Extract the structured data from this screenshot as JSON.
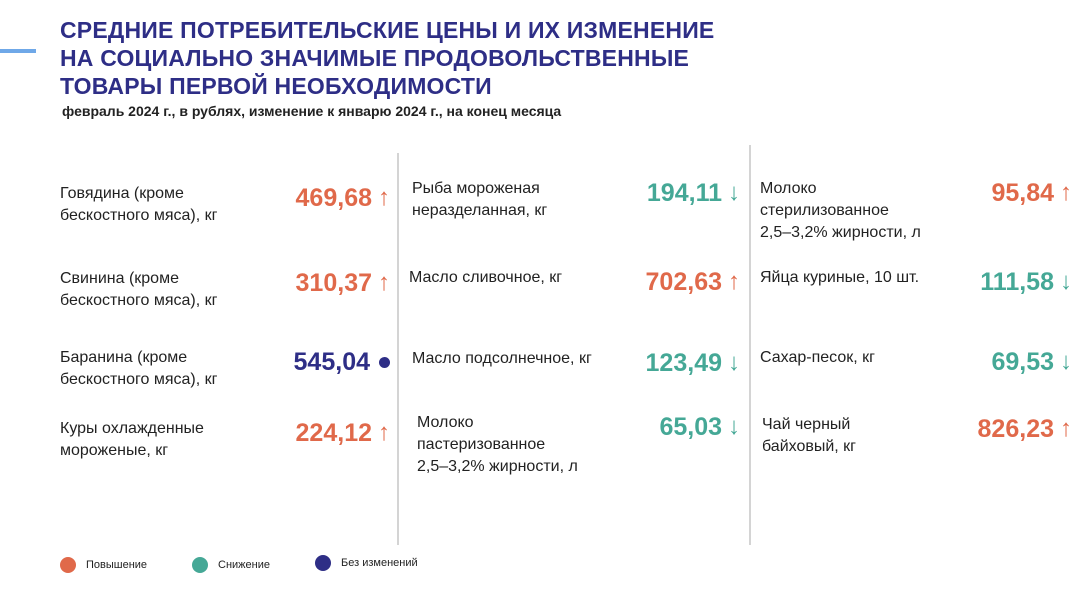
{
  "title": {
    "lines": [
      "СРЕДНИЕ ПОТРЕБИТЕЛЬСКИЕ ЦЕНЫ И ИХ ИЗМЕНЕНИЕ",
      "НА СОЦИАЛЬНО ЗНАЧИМЫЕ ПРОДОВОЛЬСТВЕННЫЕ",
      "ТОВАРЫ ПЕРВОЙ НЕОБХОДИМОСТИ"
    ]
  },
  "subtitle": "февраль 2024 г., в рублях, изменение к январю 2024 г., на конец месяца",
  "colors": {
    "title": "#2e2e86",
    "increase": "#e0694a",
    "decrease": "#45a896",
    "unchanged": "#2e2e86",
    "accent_bar": "#6fa8e8"
  },
  "items": [
    {
      "label": [
        "Говядина (кроме",
        "бескостного мяса), кг"
      ],
      "value": "469,68",
      "arrow": "↑",
      "status": "up"
    },
    {
      "label": [
        "Свинина (кроме",
        "бескостного мяса), кг"
      ],
      "value": "310,37",
      "arrow": "↑",
      "status": "up"
    },
    {
      "label": [
        "Баранина (кроме",
        "бескостного мяса), кг"
      ],
      "value": "545,04",
      "arrow": "",
      "status": "same"
    },
    {
      "label": [
        "Куры охлажденные",
        "мороженые, кг"
      ],
      "value": "224,12",
      "arrow": "↑",
      "status": "up"
    },
    {
      "label": [
        "Рыба мороженая",
        "неразделанная, кг"
      ],
      "value": "194,11",
      "arrow": "↓",
      "status": "down"
    },
    {
      "label": [
        "Масло сливочное, кг"
      ],
      "value": "702,63",
      "arrow": "↑",
      "status": "up"
    },
    {
      "label": [
        "Масло подсолнечное, кг"
      ],
      "value": "123,49",
      "arrow": "↓",
      "status": "down"
    },
    {
      "label": [
        "Молоко",
        "пастеризованное",
        "2,5–3,2% жирности, л"
      ],
      "value": "65,03",
      "arrow": "↓",
      "status": "down"
    },
    {
      "label": [
        "Молоко",
        "стерилизованное",
        "2,5–3,2% жирности, л"
      ],
      "value": "95,84",
      "arrow": "↑",
      "status": "up"
    },
    {
      "label": [
        "Яйца куриные, 10 шт."
      ],
      "value": "111,58",
      "arrow": "↓",
      "status": "down"
    },
    {
      "label": [
        "Сахар-песок, кг"
      ],
      "value": "69,53",
      "arrow": "↓",
      "status": "down"
    },
    {
      "label": [
        "Чай черный",
        "байховый, кг"
      ],
      "value": "826,23",
      "arrow": "↑",
      "status": "up"
    }
  ],
  "legend": [
    {
      "label": "Повышение",
      "color": "#e0694a"
    },
    {
      "label": "Снижение",
      "color": "#45a896"
    },
    {
      "label": "Без изменений",
      "color": "#2e2e86"
    }
  ]
}
